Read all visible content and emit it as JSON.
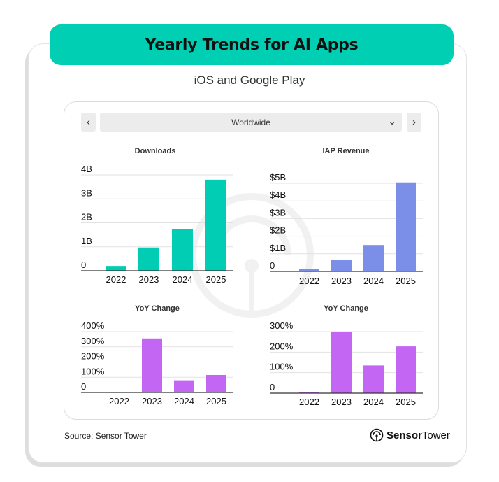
{
  "header": {
    "title": "Yearly Trends for AI Apps",
    "subtitle": "iOS and Google Play"
  },
  "controls": {
    "region": "Worldwide",
    "prev_label": "‹",
    "next_label": "›"
  },
  "footer": {
    "source": "Source: Sensor Tower",
    "logo_bold": "Sensor",
    "logo_regular": "Tower"
  },
  "colors": {
    "accent": "#00cfb4",
    "downloads": "#00cdb3",
    "revenue": "#7b8fe8",
    "yoy": "#c366f4"
  },
  "chart_data": [
    {
      "type": "bar",
      "title": "Downloads",
      "categories": [
        "2022",
        "2023",
        "2024",
        "2025"
      ],
      "values": [
        0.2,
        0.97,
        1.75,
        3.8
      ],
      "yticks": [
        0,
        1,
        2,
        3,
        4
      ],
      "ytick_labels": [
        "0",
        "1B",
        "2B",
        "3B",
        "4B"
      ],
      "ylim": [
        0,
        4
      ],
      "grid": true,
      "color": "#00cdb3"
    },
    {
      "type": "bar",
      "title": "IAP Revenue",
      "categories": [
        "2022",
        "2023",
        "2024",
        "2025"
      ],
      "values": [
        0.15,
        0.65,
        1.5,
        5.05
      ],
      "yticks": [
        0,
        1,
        2,
        3,
        4,
        5
      ],
      "ytick_labels": [
        "0",
        "$1B",
        "$2B",
        "$3B",
        "$4B",
        "$5B"
      ],
      "ylim": [
        0,
        5
      ],
      "grid": true,
      "color": "#7b8fe8"
    },
    {
      "type": "bar",
      "title": "YoY Change",
      "categories": [
        "2022",
        "2023",
        "2024",
        "2025"
      ],
      "values": [
        2,
        355,
        80,
        115
      ],
      "yticks": [
        0,
        100,
        200,
        300,
        400
      ],
      "ytick_labels": [
        "0",
        "100%",
        "200%",
        "300%",
        "400%"
      ],
      "ylim": [
        0,
        400
      ],
      "grid": true,
      "color": "#c366f4"
    },
    {
      "type": "bar",
      "title": "YoY Change",
      "categories": [
        "2022",
        "2023",
        "2024",
        "2025"
      ],
      "values": [
        2,
        298,
        135,
        228
      ],
      "yticks": [
        0,
        100,
        200,
        300
      ],
      "ytick_labels": [
        "0",
        "100%",
        "200%",
        "300%"
      ],
      "ylim": [
        0,
        300
      ],
      "grid": true,
      "color": "#c366f4"
    }
  ]
}
